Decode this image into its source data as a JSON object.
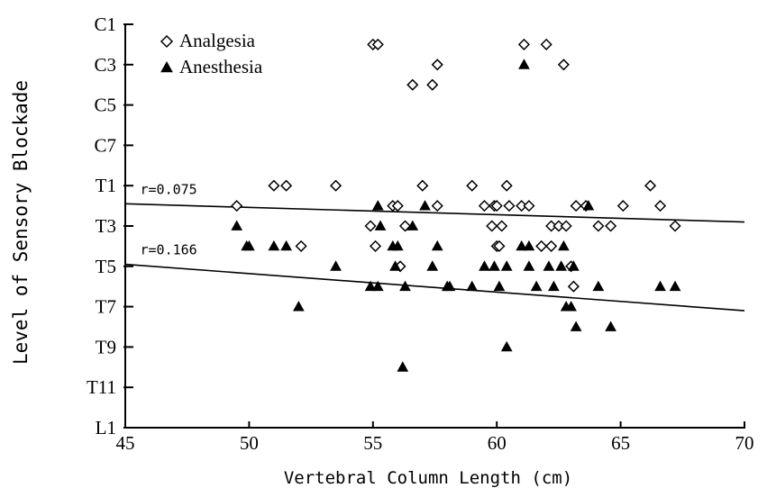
{
  "chart_data": {
    "type": "scatter",
    "title": "",
    "xlabel": "Vertebral Column Length (cm)",
    "ylabel": "Level of Sensory Blockade",
    "xlim": [
      45,
      70
    ],
    "x_ticks": [
      45,
      50,
      55,
      60,
      65,
      70
    ],
    "y_levels": [
      "C1",
      "C2",
      "C3",
      "C4",
      "C5",
      "C6",
      "C7",
      "C8",
      "T1",
      "T2",
      "T3",
      "T4",
      "T5",
      "T6",
      "T7",
      "T8",
      "T9",
      "T10",
      "T11",
      "T12",
      "L1"
    ],
    "y_tick_labels": [
      "C1",
      "C3",
      "C5",
      "C7",
      "T1",
      "T3",
      "T5",
      "T7",
      "T9",
      "T11",
      "L1"
    ],
    "legend_position": "top-left",
    "grid": false,
    "series": [
      {
        "name": "Analgesia",
        "marker": "open-diamond",
        "color": "#000000",
        "points": [
          [
            49.5,
            "T2"
          ],
          [
            51.0,
            "T1"
          ],
          [
            51.5,
            "T1"
          ],
          [
            52.1,
            "T4"
          ],
          [
            53.5,
            "T1"
          ],
          [
            54.9,
            "T3"
          ],
          [
            55.0,
            "C2"
          ],
          [
            55.2,
            "C2"
          ],
          [
            55.1,
            "T4"
          ],
          [
            55.8,
            "T2"
          ],
          [
            56.0,
            "T2"
          ],
          [
            56.1,
            "T5"
          ],
          [
            56.3,
            "T3"
          ],
          [
            56.6,
            "C4"
          ],
          [
            57.0,
            "T1"
          ],
          [
            57.4,
            "C4"
          ],
          [
            57.6,
            "C3"
          ],
          [
            57.6,
            "T2"
          ],
          [
            59.0,
            "T1"
          ],
          [
            59.5,
            "T2"
          ],
          [
            59.9,
            "T2"
          ],
          [
            60.0,
            "T2"
          ],
          [
            59.8,
            "T3"
          ],
          [
            60.0,
            "T4"
          ],
          [
            60.1,
            "T4"
          ],
          [
            60.2,
            "T3"
          ],
          [
            60.4,
            "T1"
          ],
          [
            60.5,
            "T2"
          ],
          [
            61.0,
            "T2"
          ],
          [
            61.1,
            "C2"
          ],
          [
            61.3,
            "T2"
          ],
          [
            61.8,
            "T4"
          ],
          [
            62.0,
            "C2"
          ],
          [
            62.2,
            "T3"
          ],
          [
            62.2,
            "T4"
          ],
          [
            62.5,
            "T3"
          ],
          [
            62.7,
            "C3"
          ],
          [
            62.8,
            "T3"
          ],
          [
            63.0,
            "T5"
          ],
          [
            63.1,
            "T6"
          ],
          [
            63.2,
            "T2"
          ],
          [
            63.6,
            "T2"
          ],
          [
            64.1,
            "T3"
          ],
          [
            64.6,
            "T3"
          ],
          [
            65.1,
            "T2"
          ],
          [
            66.2,
            "T1"
          ],
          [
            66.6,
            "T2"
          ],
          [
            67.2,
            "T3"
          ]
        ]
      },
      {
        "name": "Anesthesia",
        "marker": "filled-triangle",
        "color": "#000000",
        "points": [
          [
            49.5,
            "T3"
          ],
          [
            49.9,
            "T4"
          ],
          [
            50.0,
            "T4"
          ],
          [
            51.0,
            "T4"
          ],
          [
            51.5,
            "T4"
          ],
          [
            52.0,
            "T7"
          ],
          [
            53.5,
            "T5"
          ],
          [
            54.9,
            "T6"
          ],
          [
            55.2,
            "T6"
          ],
          [
            55.2,
            "T2"
          ],
          [
            55.3,
            "T3"
          ],
          [
            55.8,
            "T4"
          ],
          [
            56.0,
            "T4"
          ],
          [
            55.9,
            "T5"
          ],
          [
            56.2,
            "T10"
          ],
          [
            56.3,
            "T6"
          ],
          [
            56.6,
            "T3"
          ],
          [
            57.1,
            "T2"
          ],
          [
            57.4,
            "T5"
          ],
          [
            57.6,
            "T4"
          ],
          [
            58.0,
            "T6"
          ],
          [
            58.1,
            "T6"
          ],
          [
            59.0,
            "T6"
          ],
          [
            59.5,
            "T5"
          ],
          [
            59.9,
            "T5"
          ],
          [
            60.1,
            "T6"
          ],
          [
            60.4,
            "T5"
          ],
          [
            60.4,
            "T9"
          ],
          [
            61.0,
            "T4"
          ],
          [
            61.1,
            "C3"
          ],
          [
            61.3,
            "T4"
          ],
          [
            61.3,
            "T5"
          ],
          [
            61.6,
            "T6"
          ],
          [
            62.1,
            "T5"
          ],
          [
            62.3,
            "T6"
          ],
          [
            62.6,
            "T5"
          ],
          [
            62.7,
            "T4"
          ],
          [
            62.8,
            "T7"
          ],
          [
            63.0,
            "T7"
          ],
          [
            63.1,
            "T5"
          ],
          [
            63.2,
            "T8"
          ],
          [
            63.7,
            "T2"
          ],
          [
            64.1,
            "T6"
          ],
          [
            64.6,
            "T8"
          ],
          [
            66.6,
            "T6"
          ],
          [
            67.2,
            "T6"
          ]
        ]
      }
    ],
    "trend_lines": [
      {
        "label": "r=0.075",
        "series": "Analgesia",
        "from": [
          45,
          8.9
        ],
        "to": [
          70,
          9.8
        ]
      },
      {
        "label": "r=0.166",
        "series": "Anesthesia",
        "from": [
          45,
          11.9
        ],
        "to": [
          70,
          14.2
        ]
      }
    ]
  }
}
